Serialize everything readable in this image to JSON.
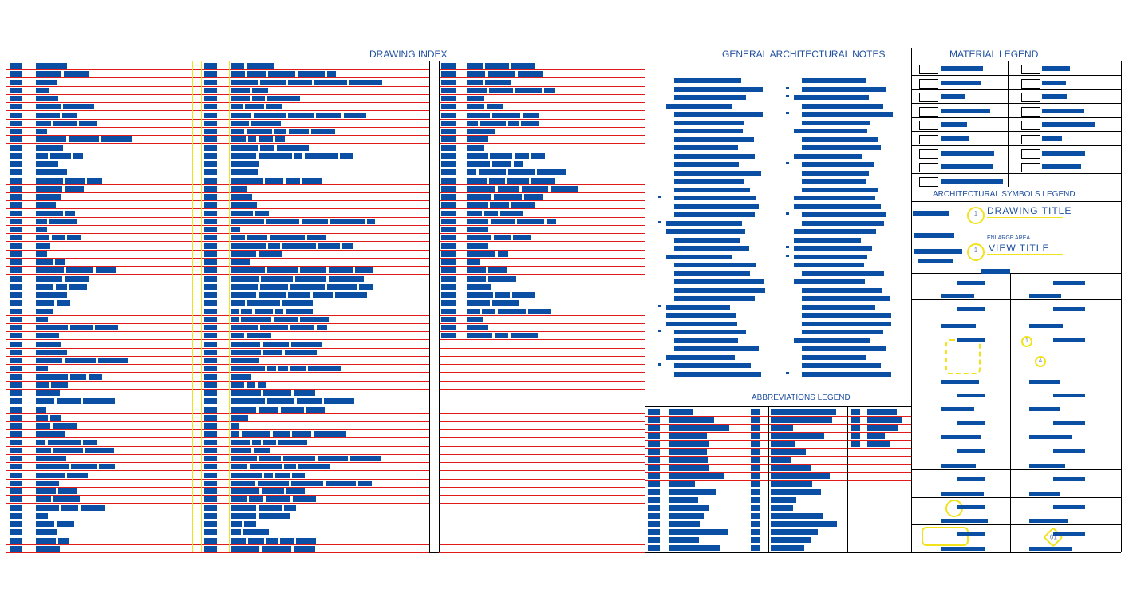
{
  "sheet": {
    "drawing_index": {
      "title": "DRAWING INDEX"
    },
    "general_notes": {
      "title": "GENERAL ARCHITECTURAL NOTES"
    },
    "material_legend": {
      "title": "MATERIAL LEGEND"
    },
    "symbols_legend": {
      "title": "ARCHITECTURAL SYMBOLS LEGEND",
      "drawing_title": "DRAWING TITLE",
      "enlarge_area": "ENLARGE AREA",
      "view_title": "VIEW TITLE",
      "bubble_number": "1",
      "bubble_number_2": "1",
      "detail_tag": "A",
      "keynote_tag": "01"
    },
    "abbreviations_legend": {
      "title": "ABBREVIATIONS LEGEND"
    },
    "colors": {
      "text": "#0a4fa3",
      "grid_red": "#e21a1a",
      "accent_yellow": "#f2e21a",
      "line": "#000000"
    }
  }
}
